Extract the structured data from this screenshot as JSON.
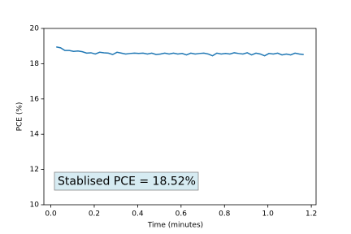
{
  "chart_data": {
    "type": "line",
    "xlabel": "Time (minutes)",
    "ylabel": "PCE (%)",
    "annotation": "Stablised PCE = 18.52%",
    "x": [
      0.025,
      0.045,
      0.065,
      0.085,
      0.105,
      0.125,
      0.145,
      0.165,
      0.185,
      0.205,
      0.225,
      0.245,
      0.265,
      0.285,
      0.305,
      0.325,
      0.345,
      0.365,
      0.385,
      0.405,
      0.425,
      0.445,
      0.465,
      0.485,
      0.505,
      0.525,
      0.545,
      0.565,
      0.585,
      0.605,
      0.625,
      0.645,
      0.665,
      0.685,
      0.705,
      0.725,
      0.745,
      0.765,
      0.785,
      0.805,
      0.825,
      0.845,
      0.865,
      0.885,
      0.905,
      0.925,
      0.945,
      0.965,
      0.985,
      1.005,
      1.025,
      1.045,
      1.065,
      1.085,
      1.105,
      1.125,
      1.145,
      1.165
    ],
    "series": [
      {
        "color": "#1f77b4",
        "values": [
          18.95,
          18.9,
          18.75,
          18.75,
          18.7,
          18.72,
          18.68,
          18.6,
          18.62,
          18.55,
          18.65,
          18.62,
          18.6,
          18.52,
          18.65,
          18.6,
          18.55,
          18.58,
          18.6,
          18.58,
          18.6,
          18.55,
          18.6,
          18.52,
          18.55,
          18.6,
          18.55,
          18.6,
          18.55,
          18.58,
          18.5,
          18.6,
          18.55,
          18.58,
          18.6,
          18.55,
          18.45,
          18.6,
          18.55,
          18.58,
          18.55,
          18.62,
          18.58,
          18.55,
          18.62,
          18.5,
          18.6,
          18.55,
          18.45,
          18.58,
          18.55,
          18.6,
          18.5,
          18.55,
          18.5,
          18.6,
          18.55,
          18.52
        ]
      }
    ],
    "xlim": [
      -0.032,
      1.222
    ],
    "xticks": [
      {
        "value": 0,
        "label": "0.0"
      },
      0.2,
      0.4,
      0.6,
      0.8,
      {
        "value": 1,
        "label": "1.0"
      },
      1.2
    ],
    "ylim": [
      10,
      20
    ],
    "yticks": [
      10,
      12,
      14,
      16,
      18,
      20
    ]
  }
}
